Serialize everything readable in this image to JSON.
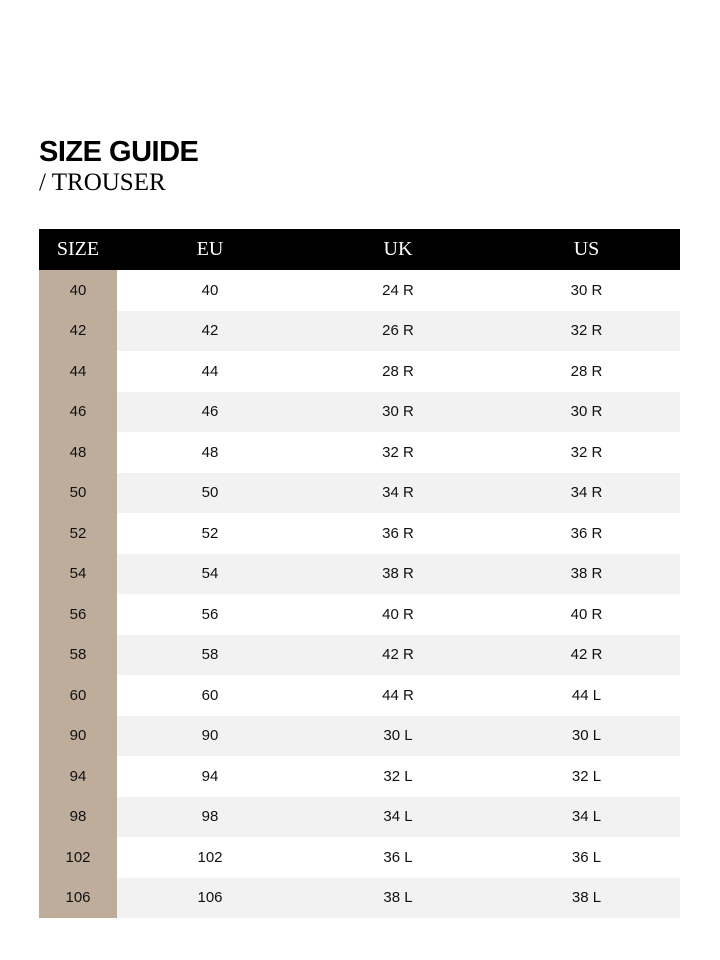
{
  "header": {
    "title": "SIZE GUIDE",
    "subtitle": "/ TROUSER"
  },
  "colors": {
    "header_bg": "#000000",
    "size_column_bg": "#bfad9c",
    "stripe": "#f2f2f2"
  },
  "table": {
    "columns": [
      "SIZE",
      "EU",
      "UK",
      "US"
    ],
    "rows": [
      [
        "40",
        "40",
        "24 R",
        "30 R"
      ],
      [
        "42",
        "42",
        "26 R",
        "32 R"
      ],
      [
        "44",
        "44",
        "28 R",
        "28 R"
      ],
      [
        "46",
        "46",
        "30 R",
        "30 R"
      ],
      [
        "48",
        "48",
        "32 R",
        "32 R"
      ],
      [
        "50",
        "50",
        "34 R",
        "34 R"
      ],
      [
        "52",
        "52",
        "36 R",
        "36 R"
      ],
      [
        "54",
        "54",
        "38 R",
        "38 R"
      ],
      [
        "56",
        "56",
        "40 R",
        "40 R"
      ],
      [
        "58",
        "58",
        "42 R",
        "42 R"
      ],
      [
        "60",
        "60",
        "44 R",
        "44 L"
      ],
      [
        "90",
        "90",
        "30 L",
        "30 L"
      ],
      [
        "94",
        "94",
        "32 L",
        "32 L"
      ],
      [
        "98",
        "98",
        "34 L",
        "34 L"
      ],
      [
        "102",
        "102",
        "36 L",
        "36 L"
      ],
      [
        "106",
        "106",
        "38 L",
        "38 L"
      ]
    ]
  }
}
